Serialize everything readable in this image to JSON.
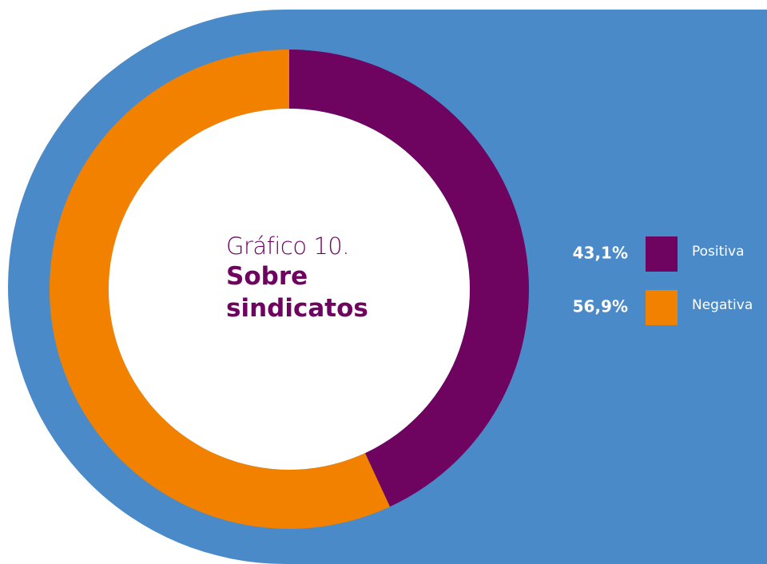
{
  "chart_data": {
    "type": "pie",
    "title": "Gráfico 10.",
    "subtitle": "Sobre sindicatos",
    "categories": [
      "Positiva",
      "Negativa"
    ],
    "values": [
      43.1,
      56.9
    ],
    "value_labels": [
      "43,1%",
      "56,9%"
    ],
    "colors": [
      "#6e0360",
      "#f28100"
    ],
    "donut": true
  }
}
